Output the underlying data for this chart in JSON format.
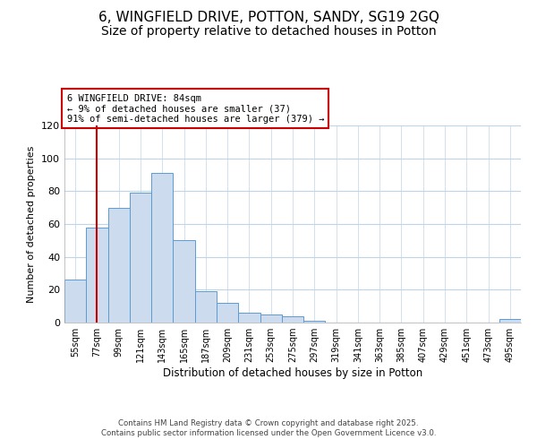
{
  "title": "6, WINGFIELD DRIVE, POTTON, SANDY, SG19 2GQ",
  "subtitle": "Size of property relative to detached houses in Potton",
  "xlabel": "Distribution of detached houses by size in Potton",
  "ylabel": "Number of detached properties",
  "bar_labels": [
    "55sqm",
    "77sqm",
    "99sqm",
    "121sqm",
    "143sqm",
    "165sqm",
    "187sqm",
    "209sqm",
    "231sqm",
    "253sqm",
    "275sqm",
    "297sqm",
    "319sqm",
    "341sqm",
    "363sqm",
    "385sqm",
    "407sqm",
    "429sqm",
    "451sqm",
    "473sqm",
    "495sqm"
  ],
  "bar_values": [
    26,
    58,
    70,
    79,
    91,
    50,
    19,
    12,
    6,
    5,
    4,
    1,
    0,
    0,
    0,
    0,
    0,
    0,
    0,
    0,
    2
  ],
  "bar_color": "#ccdcee",
  "bar_edge_color": "#6aа8d5",
  "vline_x_index": 1,
  "vline_color": "#cc0000",
  "ylim": [
    0,
    120
  ],
  "yticks": [
    0,
    20,
    40,
    60,
    80,
    100,
    120
  ],
  "annotation_line1": "6 WINGFIELD DRIVE: 84sqm",
  "annotation_line2": "← 9% of detached houses are smaller (37)",
  "annotation_line3": "91% of semi-detached houses are larger (379) →",
  "annotation_box_color": "#ffffff",
  "annotation_box_edge": "#cc0000",
  "footer_line1": "Contains HM Land Registry data © Crown copyright and database right 2025.",
  "footer_line2": "Contains public sector information licensed under the Open Government Licence v3.0.",
  "background_color": "#ffffff",
  "grid_color": "#c0d4e8",
  "title_fontsize": 11,
  "subtitle_fontsize": 10
}
